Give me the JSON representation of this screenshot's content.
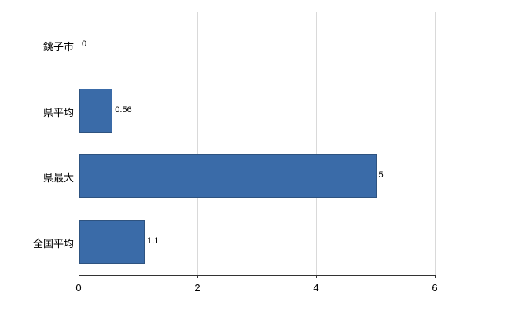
{
  "chart_data": {
    "type": "bar",
    "orientation": "horizontal",
    "title": "",
    "xlabel": "",
    "ylabel": "",
    "categories": [
      "銚子市",
      "県平均",
      "県最大",
      "全国平均"
    ],
    "values": [
      0,
      0.56,
      5,
      1.1
    ],
    "value_labels": [
      "0",
      "0.56",
      "5",
      "1.1"
    ],
    "xlim": [
      0,
      6
    ],
    "xticks": [
      0,
      2,
      4,
      6
    ],
    "xtick_labels": [
      "0",
      "2",
      "4",
      "6"
    ],
    "grid": true,
    "legend": "none",
    "colors": {
      "bar_fill": "#3a6ba8",
      "bar_border": "#2e5380",
      "gridline": "#d9d9d9",
      "axis": "#333333",
      "background": "#ffffff",
      "text": "#000000"
    }
  }
}
